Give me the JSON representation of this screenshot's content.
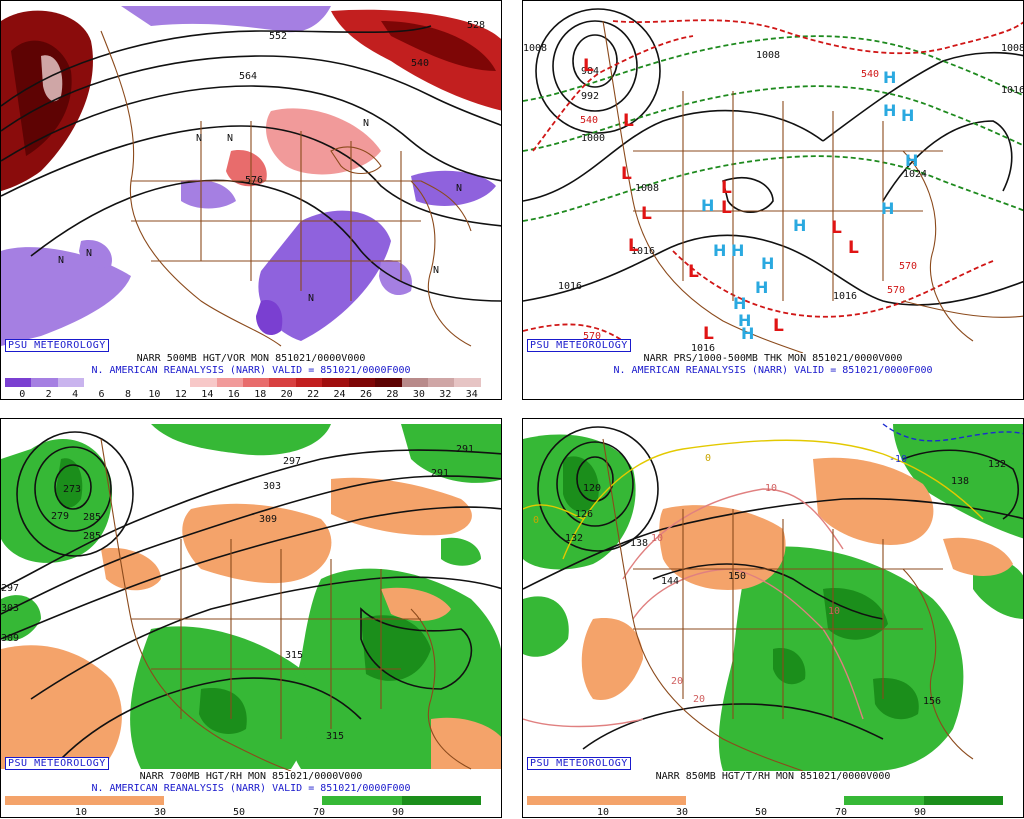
{
  "panels": [
    {
      "id": "p1",
      "tag": "PSU METEOROLOGY",
      "line1": "NARR 500MB HGT/VOR MON 851021/0000V000",
      "line2": "N. AMERICAN REANALYSIS (NARR) VALID = 851021/0000F000",
      "colorbar_labels": [
        "0",
        "2",
        "4",
        "6",
        "8",
        "10",
        "12",
        "14",
        "16",
        "18",
        "20",
        "22",
        "24",
        "26",
        "28",
        "30",
        "32",
        "34"
      ],
      "contour_labels": [
        "528",
        "552",
        "540",
        "564",
        "576",
        "N",
        "N",
        "N",
        "N",
        "N",
        "N",
        "N",
        "N"
      ],
      "colors": [
        "#7a3fd1",
        "#a57fe2",
        "#c9b4ee",
        "#ffffff",
        "#ffffff",
        "#ffffff",
        "#ffffff",
        "#f7c8c8",
        "#f19a9a",
        "#e86c6c",
        "#d84040",
        "#c21f1f",
        "#a00e0e",
        "#7e0606",
        "#5e0303",
        "#b88a8a",
        "#cfa6a6",
        "#e6c4c4"
      ]
    },
    {
      "id": "p2",
      "tag": "PSU METEOROLOGY",
      "line1": "NARR PRS/1000-500MB THK MON 851021/0000V000",
      "line2": "N. AMERICAN REANALYSIS (NARR) VALID = 851021/0000F000",
      "contour_labels": [
        "1008",
        "984",
        "992",
        "540",
        "1000",
        "1008",
        "1016",
        "1016",
        "1016",
        "1008",
        "540",
        "1024",
        "570",
        "570",
        "570",
        "1008",
        "1016",
        "1016"
      ],
      "highs": [
        "H",
        "H",
        "H",
        "H",
        "H",
        "H",
        "H",
        "H",
        "H",
        "H",
        "H",
        "H",
        "H",
        "H"
      ],
      "lows": [
        "L",
        "L",
        "L",
        "L",
        "L",
        "L",
        "L",
        "L",
        "L",
        "L",
        "L",
        "L"
      ]
    },
    {
      "id": "p3",
      "tag": "PSU METEOROLOGY",
      "line1": "NARR 700MB HGT/RH MON 851021/0000V000",
      "line2": "N. AMERICAN REANALYSIS (NARR) VALID = 851021/0000F000",
      "colorbar_labels": [
        "10",
        "30",
        "50",
        "70",
        "90"
      ],
      "contour_labels": [
        "273",
        "279",
        "285",
        "291",
        "297",
        "303",
        "309",
        "315",
        "315",
        "297",
        "285",
        "291",
        "303",
        "309"
      ],
      "colors": [
        "#f4a36a",
        "#ffffff",
        "#36b836",
        "#1b8e1b"
      ]
    },
    {
      "id": "p4",
      "tag": "PSU METEOROLOGY",
      "line1": "NARR 850MB HGT/T/RH MON 851021/0000V000",
      "line2": "",
      "colorbar_labels": [
        "10",
        "30",
        "50",
        "70",
        "90"
      ],
      "contour_labels": [
        "0",
        "0",
        "10",
        "10",
        "10",
        "20",
        "20",
        "-10",
        "120",
        "126",
        "132",
        "138",
        "144",
        "150",
        "156",
        "132",
        "138"
      ],
      "colors": [
        "#f4a36a",
        "#ffffff",
        "#36b836",
        "#1b8e1b"
      ]
    }
  ]
}
